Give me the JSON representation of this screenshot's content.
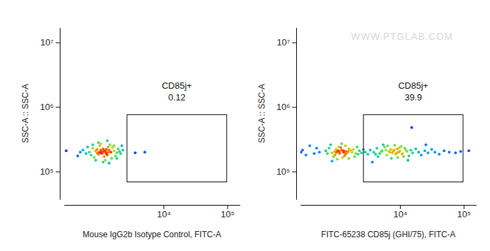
{
  "chart_data": [
    {
      "type": "scatter",
      "x_label": "Mouse IgG2b Isotype Control, FITC-A",
      "y_label": "SSC-A :: SSC-A",
      "xlim": [
        -1150,
        156000
      ],
      "ylim": [
        37000,
        17000000
      ],
      "log": "y",
      "xticks": [
        {
          "value": 10000,
          "label": "10⁴"
        },
        {
          "value": 100000,
          "label": "10⁵"
        }
      ],
      "yticks": [
        {
          "value": 100000,
          "label": "10⁵"
        },
        {
          "value": 1000000,
          "label": "10⁶"
        },
        {
          "value": 10000000,
          "label": "10⁷"
        }
      ],
      "gate": {
        "label": "CD85j+",
        "value": 0.12,
        "x": [
          2200,
          98000
        ],
        "y": [
          69000,
          760000
        ]
      },
      "x": [
        0,
        200,
        400,
        600,
        800,
        300,
        500,
        -100,
        100,
        700,
        900,
        1100,
        1300,
        -200,
        350,
        550,
        750,
        150,
        450,
        650,
        250,
        1000,
        1200,
        1500,
        -300,
        50,
        850,
        400,
        600,
        200,
        1600,
        1400,
        950,
        -50,
        300,
        700,
        500,
        1100,
        1800,
        -400,
        100,
        800,
        350,
        550,
        450,
        650,
        250,
        750,
        500,
        400,
        -1000,
        3200,
        4800,
        1700,
        1300
      ],
      "values": [
        200000,
        210000,
        195000,
        205000,
        215000,
        185000,
        225000,
        190000,
        230000,
        180000,
        200000,
        210000,
        195000,
        215000,
        250000,
        170000,
        240000,
        165000,
        205000,
        190000,
        220000,
        235000,
        175000,
        205000,
        200000,
        180000,
        260000,
        270000,
        150000,
        150000,
        190000,
        225000,
        160000,
        240000,
        280000,
        300000,
        140000,
        250000,
        215000,
        175000,
        260000,
        135000,
        200000,
        210000,
        190000,
        220000,
        195000,
        200000,
        200000,
        215000,
        210000,
        195000,
        200000,
        250000,
        160000
      ]
    },
    {
      "type": "scatter",
      "x_label": "FITC-65238 CD85j (GHI/75), FITC-A",
      "y_label": "SSC-A :: SSC-A",
      "watermark": "WWW.PTGLAB.COM",
      "xlim": [
        -1150,
        156000
      ],
      "ylim": [
        37000,
        17000000
      ],
      "log": "y",
      "xticks": [
        {
          "value": 10000,
          "label": "10⁴"
        },
        {
          "value": 100000,
          "label": "10⁵"
        }
      ],
      "yticks": [
        {
          "value": 100000,
          "label": "10⁵"
        },
        {
          "value": 1000000,
          "label": "10⁶"
        },
        {
          "value": 10000000,
          "label": "10⁷"
        }
      ],
      "gate": {
        "label": "CD85j+",
        "value": 39.9,
        "x": [
          2200,
          98000
        ],
        "y": [
          69000,
          760000
        ]
      },
      "x": [
        -200,
        0,
        200,
        400,
        600,
        800,
        1000,
        -400,
        100,
        300,
        500,
        700,
        900,
        1100,
        -600,
        250,
        450,
        650,
        850,
        50,
        350,
        550,
        750,
        950,
        1200,
        -800,
        150,
        400,
        600,
        1300,
        1500,
        -1000,
        -300,
        200,
        800,
        1000,
        300,
        500,
        700,
        450,
        -1100,
        1600,
        1700,
        1400,
        350,
        1800,
        2000,
        2200,
        2400,
        2700,
        3000,
        3500,
        4000,
        4500,
        5000,
        5500,
        6000,
        6500,
        7000,
        7500,
        8000,
        8500,
        9000,
        9500,
        10000,
        11000,
        12000,
        13000,
        14000,
        15000,
        16000,
        18000,
        20000,
        4200,
        5200,
        6200,
        7200,
        8200,
        9200,
        10500,
        11500,
        6800,
        7800,
        8800,
        12500,
        5800,
        4800,
        3800,
        9800,
        10800,
        22000,
        25000,
        28000,
        32000,
        36000,
        42000,
        50000,
        60000,
        75000,
        90000,
        120000,
        15500,
        3300,
        13500,
        26000
      ],
      "values": [
        200000,
        210000,
        195000,
        205000,
        215000,
        185000,
        225000,
        190000,
        230000,
        180000,
        200000,
        210000,
        195000,
        215000,
        250000,
        170000,
        240000,
        165000,
        205000,
        190000,
        220000,
        235000,
        175000,
        205000,
        200000,
        180000,
        260000,
        155000,
        270000,
        220000,
        190000,
        215000,
        230000,
        145000,
        250000,
        160000,
        205000,
        190000,
        200000,
        210000,
        200000,
        240000,
        185000,
        170000,
        195000,
        210000,
        195000,
        220000,
        200000,
        185000,
        215000,
        200000,
        230000,
        190000,
        210000,
        240000,
        180000,
        205000,
        220000,
        195000,
        215000,
        185000,
        225000,
        200000,
        210000,
        190000,
        230000,
        205000,
        175000,
        215000,
        195000,
        225000,
        200000,
        170000,
        260000,
        250000,
        160000,
        255000,
        165000,
        245000,
        170000,
        200000,
        210000,
        195000,
        215000,
        215000,
        205000,
        185000,
        235000,
        185000,
        180000,
        210000,
        195000,
        220000,
        200000,
        185000,
        210000,
        200000,
        195000,
        205000,
        210000,
        480000,
        140000,
        150000,
        260000
      ]
    }
  ]
}
